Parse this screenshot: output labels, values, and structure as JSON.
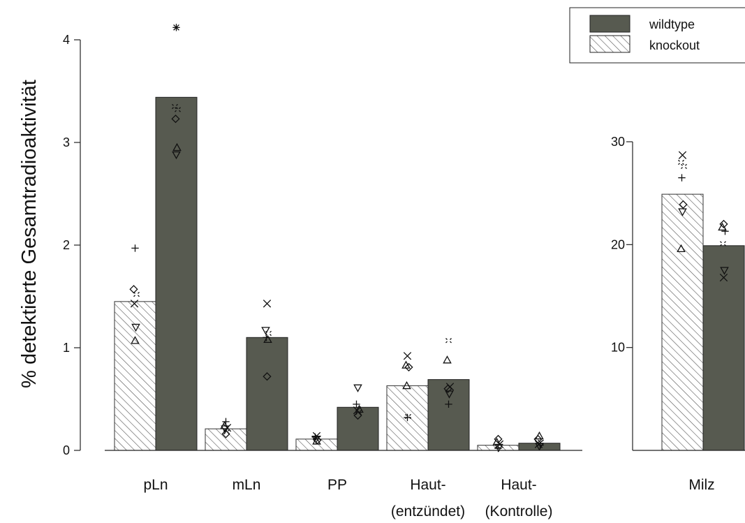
{
  "chart_data": {
    "type": "bar",
    "ylabel": "% detektierte Gesamtradioaktivität",
    "colors": {
      "wildtype": "#575a50",
      "knockout_hatch": "#555555",
      "background": "#ffffff"
    },
    "legend": {
      "placement": "top-right",
      "entries": [
        {
          "name": "wildtype",
          "fill": "solid"
        },
        {
          "name": "knockout",
          "fill": "hatched"
        }
      ]
    },
    "panels": [
      {
        "id": "left",
        "ylim": [
          0,
          4
        ],
        "yticks": [
          "0",
          "1",
          "2",
          "3",
          "4"
        ],
        "categories": [
          {
            "label_lines": [
              "pLn"
            ],
            "knockout": {
              "mean": 1.45,
              "points": [
                {
                  "v": 1.97,
                  "m": "plus"
                },
                {
                  "v": 1.57,
                  "m": "diamond"
                },
                {
                  "v": 1.52,
                  "m": "sq"
                },
                {
                  "v": 1.43,
                  "m": "x"
                },
                {
                  "v": 1.2,
                  "m": "tdown"
                },
                {
                  "v": 1.07,
                  "m": "tup"
                }
              ]
            },
            "wildtype": {
              "mean": 3.44,
              "points": [
                {
                  "v": 4.12,
                  "m": "star"
                },
                {
                  "v": 3.35,
                  "m": "sq"
                },
                {
                  "v": 3.32,
                  "m": "sq"
                },
                {
                  "v": 3.23,
                  "m": "diamond"
                },
                {
                  "v": 2.95,
                  "m": "tup"
                },
                {
                  "v": 2.88,
                  "m": "tdown"
                }
              ]
            }
          },
          {
            "label_lines": [
              "mLn"
            ],
            "knockout": {
              "mean": 0.21,
              "points": [
                {
                  "v": 0.28,
                  "m": "plus"
                },
                {
                  "v": 0.24,
                  "m": "tup"
                },
                {
                  "v": 0.22,
                  "m": "x"
                },
                {
                  "v": 0.21,
                  "m": "tdown"
                },
                {
                  "v": 0.18,
                  "m": "sq"
                },
                {
                  "v": 0.16,
                  "m": "diamond"
                }
              ]
            },
            "wildtype": {
              "mean": 1.1,
              "points": [
                {
                  "v": 1.43,
                  "m": "x"
                },
                {
                  "v": 1.17,
                  "m": "tdown"
                },
                {
                  "v": 1.14,
                  "m": "sq"
                },
                {
                  "v": 1.1,
                  "m": "plus"
                },
                {
                  "v": 1.08,
                  "m": "tup"
                },
                {
                  "v": 0.72,
                  "m": "diamond"
                }
              ]
            }
          },
          {
            "label_lines": [
              "PP"
            ],
            "knockout": {
              "mean": 0.11,
              "points": [
                {
                  "v": 0.14,
                  "m": "x"
                },
                {
                  "v": 0.13,
                  "m": "plus"
                },
                {
                  "v": 0.12,
                  "m": "sq"
                },
                {
                  "v": 0.11,
                  "m": "tdown"
                },
                {
                  "v": 0.1,
                  "m": "diamond"
                },
                {
                  "v": 0.09,
                  "m": "tup"
                }
              ]
            },
            "wildtype": {
              "mean": 0.42,
              "points": [
                {
                  "v": 0.61,
                  "m": "tdown"
                },
                {
                  "v": 0.45,
                  "m": "plus"
                },
                {
                  "v": 0.4,
                  "m": "tup"
                },
                {
                  "v": 0.39,
                  "m": "x"
                },
                {
                  "v": 0.37,
                  "m": "sq"
                },
                {
                  "v": 0.34,
                  "m": "diamond"
                }
              ]
            }
          },
          {
            "label_lines": [
              "Haut-",
              "(entzündet)"
            ],
            "knockout": {
              "mean": 0.63,
              "points": [
                {
                  "v": 0.92,
                  "m": "x"
                },
                {
                  "v": 0.83,
                  "m": "tup"
                },
                {
                  "v": 0.81,
                  "m": "diamond"
                },
                {
                  "v": 0.63,
                  "m": "tup"
                },
                {
                  "v": 0.33,
                  "m": "sq"
                },
                {
                  "v": 0.32,
                  "m": "plus"
                }
              ]
            },
            "wildtype": {
              "mean": 0.69,
              "points": [
                {
                  "v": 1.07,
                  "m": "sq"
                },
                {
                  "v": 0.88,
                  "m": "tup"
                },
                {
                  "v": 0.62,
                  "m": "x"
                },
                {
                  "v": 0.6,
                  "m": "diamond"
                },
                {
                  "v": 0.55,
                  "m": "tdown"
                },
                {
                  "v": 0.45,
                  "m": "plus"
                }
              ]
            }
          },
          {
            "label_lines": [
              "Haut-",
              "(Kontrolle)"
            ],
            "knockout": {
              "mean": 0.05,
              "points": [
                {
                  "v": 0.11,
                  "m": "diamond"
                },
                {
                  "v": 0.08,
                  "m": "tup"
                },
                {
                  "v": 0.06,
                  "m": "x"
                },
                {
                  "v": 0.04,
                  "m": "sq"
                },
                {
                  "v": 0.03,
                  "m": "tdown"
                },
                {
                  "v": 0.02,
                  "m": "plus"
                }
              ]
            },
            "wildtype": {
              "mean": 0.07,
              "points": [
                {
                  "v": 0.14,
                  "m": "tup"
                },
                {
                  "v": 0.11,
                  "m": "diamond"
                },
                {
                  "v": 0.08,
                  "m": "sq"
                },
                {
                  "v": 0.06,
                  "m": "x"
                },
                {
                  "v": 0.05,
                  "m": "plus"
                },
                {
                  "v": 0.04,
                  "m": "tdown"
                }
              ]
            }
          }
        ]
      },
      {
        "id": "right",
        "ylim": [
          0,
          30
        ],
        "yticks": [
          "10",
          "20",
          "30"
        ],
        "categories": [
          {
            "label_lines": [
              "Milz"
            ],
            "knockout": {
              "mean": 24.9,
              "points": [
                {
                  "v": 28.7,
                  "m": "x"
                },
                {
                  "v": 28.0,
                  "m": "sq"
                },
                {
                  "v": 27.6,
                  "m": "sq"
                },
                {
                  "v": 26.5,
                  "m": "plus"
                },
                {
                  "v": 23.9,
                  "m": "diamond"
                },
                {
                  "v": 23.2,
                  "m": "tdown"
                },
                {
                  "v": 19.6,
                  "m": "tup"
                }
              ]
            },
            "wildtype": {
              "mean": 19.9,
              "points": [
                {
                  "v": 22.0,
                  "m": "diamond"
                },
                {
                  "v": 21.7,
                  "m": "tup"
                },
                {
                  "v": 21.3,
                  "m": "plus"
                },
                {
                  "v": 20.1,
                  "m": "sq"
                },
                {
                  "v": 17.5,
                  "m": "tdown"
                },
                {
                  "v": 16.8,
                  "m": "x"
                }
              ]
            }
          }
        ]
      }
    ]
  }
}
